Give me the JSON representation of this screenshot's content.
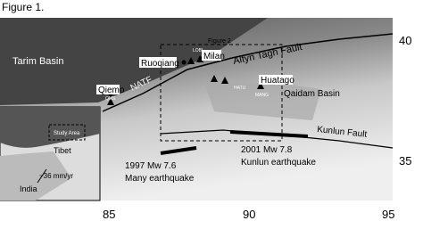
{
  "figure_label": "Figure 1.",
  "inset_box_label": "Figure 2",
  "regions": {
    "tarim": "Tarim Basin",
    "qaidam": "Qaidam Basin"
  },
  "faults": {
    "altyn": "Altyn Tagh Fault",
    "natf": "NATF",
    "kunlun": "Kunlun Fault"
  },
  "towns": {
    "ruoqiang": "Ruoqiang",
    "milan": "Milan",
    "qiemo": "Qiemo",
    "huatago": "Huatago"
  },
  "stations": [
    "LOBL",
    "QMS",
    "HATU",
    "MANG"
  ],
  "earthquakes": [
    {
      "line1": "1997 Mw 7.6",
      "line2": "Many earthquake"
    },
    {
      "line1": "2001 Mw 7.8",
      "line2": "Kunlun earthquake"
    }
  ],
  "inset": {
    "study_area": "Study Area",
    "tibet": "Tibet",
    "india": "India",
    "rate": "~36 mm/yr"
  },
  "lon_ticks": [
    85,
    90,
    95
  ],
  "lat_ticks": [
    40,
    35
  ]
}
